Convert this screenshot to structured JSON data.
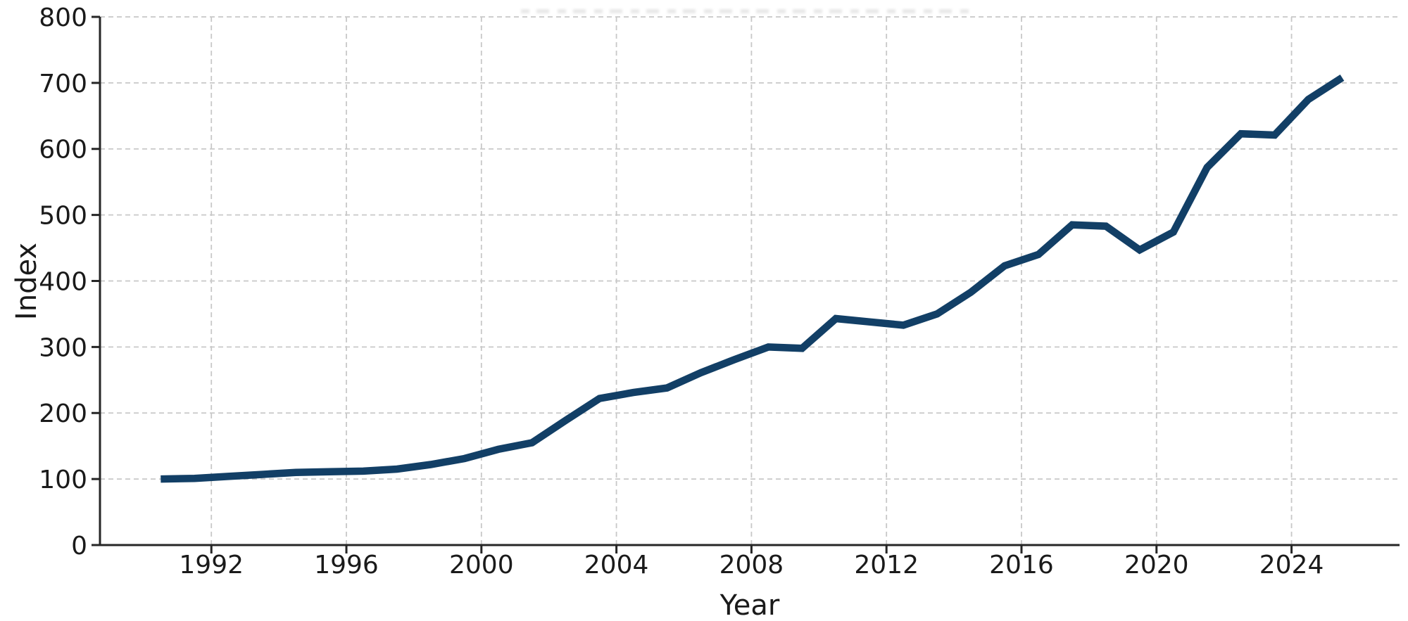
{
  "figure": {
    "background": "#ffffff",
    "grid_color": "#c8c8c8",
    "spine_color": "#262626",
    "text_color": "#1a1a1a"
  },
  "chart_data": {
    "type": "line",
    "title": "",
    "xlabel": "Year",
    "ylabel": "Index",
    "line_color": "#123f66",
    "line_width": 10.5,
    "grid": true,
    "grid_style": "dashed",
    "legend": "none",
    "xlim": [
      1988.7,
      2027.2
    ],
    "ylim": [
      0,
      800
    ],
    "x_ticks": [
      1992,
      1996,
      2000,
      2004,
      2008,
      2012,
      2016,
      2020,
      2024
    ],
    "y_ticks": [
      0,
      100,
      200,
      300,
      400,
      500,
      600,
      700,
      800
    ],
    "point_year_offset": 0.5,
    "x": [
      1990,
      1991,
      1992,
      1993,
      1994,
      1995,
      1996,
      1997,
      1998,
      1999,
      2000,
      2001,
      2002,
      2003,
      2004,
      2005,
      2006,
      2007,
      2008,
      2009,
      2010,
      2011,
      2012,
      2013,
      2014,
      2015,
      2016,
      2017,
      2018,
      2019,
      2020,
      2021,
      2022,
      2023,
      2024,
      2025
    ],
    "values": [
      100,
      101,
      104,
      107,
      110,
      111,
      112,
      115,
      122,
      131,
      145,
      155,
      189,
      222,
      231,
      238,
      261,
      281,
      300,
      298,
      343,
      338,
      333,
      350,
      383,
      423,
      440,
      485,
      483,
      447,
      474,
      572,
      623,
      621,
      675,
      708
    ]
  }
}
